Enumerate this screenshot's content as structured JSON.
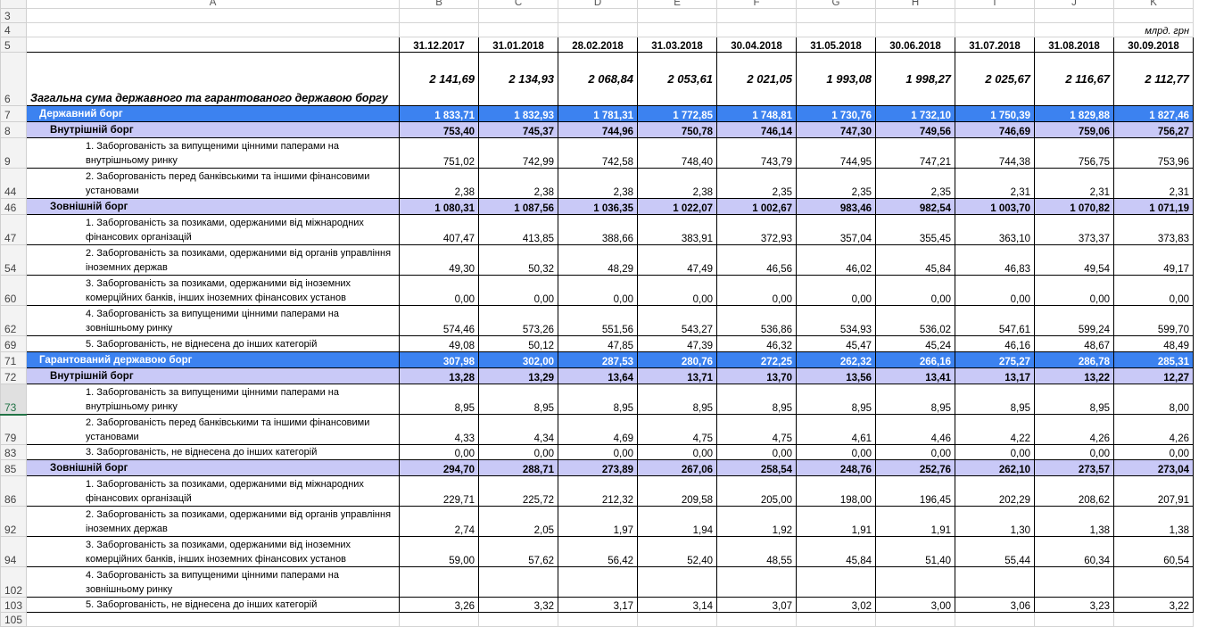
{
  "col_letters": [
    "A",
    "B",
    "C",
    "D",
    "E",
    "F",
    "G",
    "H",
    "I",
    "J",
    "K"
  ],
  "unit": "млрд. грн",
  "dates": [
    "31.12.2017",
    "31.01.2018",
    "28.02.2018",
    "31.03.2018",
    "30.04.2018",
    "31.05.2018",
    "30.06.2018",
    "31.07.2018",
    "31.08.2018",
    "30.09.2018"
  ],
  "row_numbers": {
    "r3": "3",
    "r4": "4",
    "r5": "5",
    "r105": "105"
  },
  "rows": [
    {
      "num": "6",
      "label": "Загальна сума державного та гарантованого державою боргу",
      "values": [
        "2 141,69",
        "2 134,93",
        "2 068,84",
        "2 053,61",
        "2 021,05",
        "1 993,08",
        "1 998,27",
        "2 025,67",
        "2 116,67",
        "2 112,77"
      ]
    },
    {
      "num": "7",
      "label": "Державний борг",
      "values": [
        "1 833,71",
        "1 832,93",
        "1 781,31",
        "1 772,85",
        "1 748,81",
        "1 730,76",
        "1 732,10",
        "1 750,39",
        "1 829,88",
        "1 827,46"
      ]
    },
    {
      "num": "8",
      "label": "Внутрішній борг",
      "values": [
        "753,40",
        "745,37",
        "744,96",
        "750,78",
        "746,14",
        "747,30",
        "749,56",
        "746,69",
        "759,06",
        "756,27"
      ]
    },
    {
      "num": "9",
      "label": "1. Заборгованість за випущеними цінними паперами на внутрішньому ринку",
      "values": [
        "751,02",
        "742,99",
        "742,58",
        "748,40",
        "743,79",
        "744,95",
        "747,21",
        "744,38",
        "756,75",
        "753,96"
      ]
    },
    {
      "num": "44",
      "label": "2. Заборгованість перед банківськими та іншими фінансовими установами",
      "values": [
        "2,38",
        "2,38",
        "2,38",
        "2,38",
        "2,35",
        "2,35",
        "2,35",
        "2,31",
        "2,31",
        "2,31"
      ]
    },
    {
      "num": "46",
      "label": "Зовнішній борг",
      "values": [
        "1 080,31",
        "1 087,56",
        "1 036,35",
        "1 022,07",
        "1 002,67",
        "983,46",
        "982,54",
        "1 003,70",
        "1 070,82",
        "1 071,19"
      ]
    },
    {
      "num": "47",
      "label": "1. Заборгованість за позиками, одержаними від міжнародних фінансових організацій",
      "values": [
        "407,47",
        "413,85",
        "388,66",
        "383,91",
        "372,93",
        "357,04",
        "355,45",
        "363,10",
        "373,37",
        "373,83"
      ]
    },
    {
      "num": "54",
      "label": "2. Заборгованість за позиками, одержаними від органів управління іноземних держав",
      "values": [
        "49,30",
        "50,32",
        "48,29",
        "47,49",
        "46,56",
        "46,02",
        "45,84",
        "46,83",
        "49,54",
        "49,17"
      ]
    },
    {
      "num": "60",
      "label": "3. Заборгованість за позиками, одержаними від іноземних комерційних банків, інших іноземних фінансових установ",
      "values": [
        "0,00",
        "0,00",
        "0,00",
        "0,00",
        "0,00",
        "0,00",
        "0,00",
        "0,00",
        "0,00",
        "0,00"
      ]
    },
    {
      "num": "62",
      "label": "4. Заборгованість за випущеними цінними паперами на зовнішньому ринку",
      "values": [
        "574,46",
        "573,26",
        "551,56",
        "543,27",
        "536,86",
        "534,93",
        "536,02",
        "547,61",
        "599,24",
        "599,70"
      ]
    },
    {
      "num": "69",
      "label": "5. Заборгованість, не віднесена до інших категорій",
      "values": [
        "49,08",
        "50,12",
        "47,85",
        "47,39",
        "46,32",
        "45,47",
        "45,24",
        "46,16",
        "48,67",
        "48,49"
      ]
    },
    {
      "num": "71",
      "label": "Гарантований державою борг",
      "values": [
        "307,98",
        "302,00",
        "287,53",
        "280,76",
        "272,25",
        "262,32",
        "266,16",
        "275,27",
        "286,78",
        "285,31"
      ]
    },
    {
      "num": "72",
      "label": "Внутрішній борг",
      "values": [
        "13,28",
        "13,29",
        "13,64",
        "13,71",
        "13,70",
        "13,56",
        "13,41",
        "13,17",
        "13,22",
        "12,27"
      ]
    },
    {
      "num": "73",
      "label": "1. Заборгованість за випущеними цінними паперами на внутрішньому ринку",
      "values": [
        "8,95",
        "8,95",
        "8,95",
        "8,95",
        "8,95",
        "8,95",
        "8,95",
        "8,95",
        "8,95",
        "8,00"
      ]
    },
    {
      "num": "79",
      "label": "2. Заборгованість перед банківськими та іншими фінансовими установами",
      "values": [
        "4,33",
        "4,34",
        "4,69",
        "4,75",
        "4,75",
        "4,61",
        "4,46",
        "4,22",
        "4,26",
        "4,26"
      ]
    },
    {
      "num": "83",
      "label": "3. Заборгованість, не віднесена до інших категорій",
      "values": [
        "0,00",
        "0,00",
        "0,00",
        "0,00",
        "0,00",
        "0,00",
        "0,00",
        "0,00",
        "0,00",
        "0,00"
      ]
    },
    {
      "num": "85",
      "label": "Зовнішній борг",
      "values": [
        "294,70",
        "288,71",
        "273,89",
        "267,06",
        "258,54",
        "248,76",
        "252,76",
        "262,10",
        "273,57",
        "273,04"
      ]
    },
    {
      "num": "86",
      "label": "1. Заборгованість за позиками, одержаними від міжнародних фінансових організацій",
      "values": [
        "229,71",
        "225,72",
        "212,32",
        "209,58",
        "205,00",
        "198,00",
        "196,45",
        "202,29",
        "208,62",
        "207,91"
      ]
    },
    {
      "num": "92",
      "label": "2. Заборгованість за позиками, одержаними від органів управління іноземних держав",
      "values": [
        "2,74",
        "2,05",
        "1,97",
        "1,94",
        "1,92",
        "1,91",
        "1,91",
        "1,30",
        "1,38",
        "1,38"
      ]
    },
    {
      "num": "94",
      "label": "3. Заборгованість за позиками, одержаними від іноземних комерційних банків, інших іноземних фінансових установ",
      "values": [
        "59,00",
        "57,62",
        "56,42",
        "52,40",
        "48,55",
        "45,84",
        "51,40",
        "55,44",
        "60,34",
        "60,54"
      ]
    },
    {
      "num": "102",
      "label": "4. Заборгованість за випущеними цінними паперами на зовнішньому ринку",
      "values": [
        "",
        "",
        "",
        "",
        "",
        "",
        "",
        "",
        "",
        ""
      ]
    },
    {
      "num": "103",
      "label": "5. Заборгованість, не віднесена до інших категорій",
      "values": [
        "3,26",
        "3,32",
        "3,17",
        "3,14",
        "3,07",
        "3,02",
        "3,00",
        "3,06",
        "3,23",
        "3,22"
      ]
    }
  ]
}
